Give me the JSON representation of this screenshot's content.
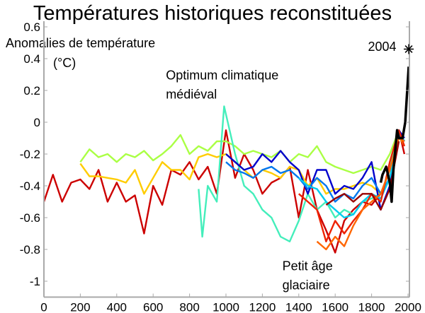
{
  "chart_data": {
    "type": "line",
    "title": "Températures historiques reconstituées",
    "ylabel_lines": [
      "Anomalies de température",
      "(°C)"
    ],
    "xlabel": "",
    "xlim": [
      0,
      2000
    ],
    "ylim": [
      -1.1,
      0.6
    ],
    "xticks": [
      0,
      200,
      400,
      600,
      800,
      1000,
      1200,
      1400,
      1600,
      1800,
      2000
    ],
    "yticks": [
      -1,
      -0.8,
      -0.6,
      -0.4,
      -0.2,
      0,
      0.2,
      0.4,
      0.6
    ],
    "ytick_labels": [
      "-1",
      "-0.8",
      "-0.6",
      "-0.4",
      "-0.2",
      "0",
      "0.2",
      "0.4",
      "0.6"
    ],
    "grid": false,
    "annotations": [
      {
        "lines": [
          "Optimum climatique",
          "médiéval"
        ],
        "x": 670,
        "y": 0.27
      },
      {
        "lines": [
          "Petit âge",
          "glaciaire"
        ],
        "x": 1310,
        "y": -0.93
      },
      {
        "lines": [
          "2004"
        ],
        "x": 1780,
        "y": 0.45
      }
    ],
    "marker_2004": {
      "x": 2004,
      "y": 0.46,
      "symbol": "asterisk"
    },
    "series": [
      {
        "color": "#cc0000",
        "x": [
          0,
          50,
          100,
          150,
          200,
          250,
          300,
          350,
          400,
          450,
          500,
          550,
          600,
          650,
          700,
          750,
          800,
          850,
          900,
          950,
          1000,
          1050,
          1100,
          1150,
          1200,
          1250,
          1300,
          1350,
          1400,
          1450,
          1500,
          1550,
          1600,
          1650,
          1700,
          1750,
          1800,
          1850,
          1900,
          1950,
          1980
        ],
        "y": [
          -0.5,
          -0.33,
          -0.5,
          -0.38,
          -0.36,
          -0.42,
          -0.3,
          -0.5,
          -0.38,
          -0.5,
          -0.46,
          -0.7,
          -0.4,
          -0.52,
          -0.3,
          -0.33,
          -0.25,
          -0.36,
          -0.28,
          -0.45,
          -0.05,
          -0.35,
          -0.2,
          -0.3,
          -0.45,
          -0.38,
          -0.35,
          -0.28,
          -0.6,
          -0.3,
          -0.55,
          -0.68,
          -0.82,
          -0.62,
          -0.55,
          -0.5,
          -0.52,
          -0.45,
          -0.3,
          -0.05,
          -0.2
        ]
      },
      {
        "color": "#aaff44",
        "x": [
          200,
          250,
          300,
          350,
          400,
          450,
          500,
          550,
          600,
          650,
          700,
          750,
          800,
          850,
          900,
          950,
          1000,
          1050,
          1100,
          1150,
          1200,
          1250,
          1300,
          1350,
          1400,
          1450,
          1500,
          1550,
          1600,
          1650,
          1700,
          1750,
          1800,
          1850,
          1900,
          1950,
          1980
        ],
        "y": [
          -0.25,
          -0.17,
          -0.22,
          -0.2,
          -0.25,
          -0.2,
          -0.22,
          -0.18,
          -0.24,
          -0.2,
          -0.15,
          -0.08,
          -0.2,
          -0.15,
          -0.18,
          -0.12,
          -0.12,
          -0.15,
          -0.2,
          -0.18,
          -0.2,
          -0.22,
          -0.18,
          -0.25,
          -0.2,
          -0.22,
          -0.15,
          -0.25,
          -0.28,
          -0.3,
          -0.32,
          -0.3,
          -0.28,
          -0.3,
          -0.2,
          -0.05,
          -0.12
        ]
      },
      {
        "color": "#ffcc00",
        "x": [
          200,
          250,
          300,
          350,
          400,
          450,
          500,
          550,
          600,
          650,
          700,
          750,
          800,
          850,
          900,
          950,
          1000,
          1050,
          1100,
          1150,
          1200,
          1250,
          1300,
          1350,
          1400,
          1450,
          1500,
          1550,
          1600,
          1650,
          1700,
          1750,
          1800,
          1850,
          1900,
          1950,
          1980
        ],
        "y": [
          -0.26,
          -0.34,
          -0.34,
          -0.35,
          -0.36,
          -0.38,
          -0.3,
          -0.45,
          -0.35,
          -0.25,
          -0.3,
          -0.3,
          -0.36,
          -0.22,
          -0.2,
          -0.22,
          -0.2,
          -0.25,
          -0.3,
          -0.35,
          -0.3,
          -0.32,
          -0.35,
          -0.28,
          -0.3,
          -0.4,
          -0.35,
          -0.45,
          -0.42,
          -0.42,
          -0.4,
          -0.38,
          -0.4,
          -0.45,
          -0.3,
          -0.08,
          -0.15
        ]
      },
      {
        "color": "#44eebb",
        "x": [
          850,
          870,
          900,
          950,
          990,
          1050,
          1100,
          1150,
          1200,
          1250,
          1300,
          1350,
          1400,
          1450,
          1500,
          1550,
          1600,
          1650,
          1700,
          1750,
          1800,
          1850,
          1900,
          1950,
          1980
        ],
        "y": [
          -0.42,
          -0.72,
          -0.4,
          -0.5,
          0.1,
          -0.2,
          -0.4,
          -0.45,
          -0.55,
          -0.6,
          -0.72,
          -0.75,
          -0.62,
          -0.45,
          -0.55,
          -0.5,
          -0.6,
          -0.55,
          -0.58,
          -0.5,
          -0.48,
          -0.45,
          -0.3,
          -0.05,
          -0.12
        ]
      },
      {
        "color": "#0000cc",
        "x": [
          1000,
          1050,
          1100,
          1150,
          1200,
          1250,
          1300,
          1350,
          1400,
          1450,
          1500,
          1550,
          1600,
          1650,
          1700,
          1750,
          1800,
          1850,
          1900,
          1950,
          1980
        ],
        "y": [
          -0.2,
          -0.25,
          -0.3,
          -0.28,
          -0.2,
          -0.25,
          -0.18,
          -0.25,
          -0.3,
          -0.45,
          -0.3,
          -0.3,
          -0.45,
          -0.4,
          -0.42,
          -0.35,
          -0.25,
          -0.55,
          -0.4,
          -0.05,
          -0.1
        ]
      },
      {
        "color": "#0077ee",
        "x": [
          1000,
          1050,
          1100,
          1150,
          1200,
          1250,
          1300,
          1350,
          1400,
          1450,
          1500,
          1550,
          1600,
          1650,
          1700,
          1750,
          1800,
          1850,
          1900,
          1950,
          1980
        ],
        "y": [
          -0.25,
          -0.3,
          -0.32,
          -0.35,
          -0.3,
          -0.28,
          -0.32,
          -0.3,
          -0.35,
          -0.42,
          -0.35,
          -0.4,
          -0.5,
          -0.45,
          -0.48,
          -0.4,
          -0.35,
          -0.45,
          -0.35,
          -0.08,
          -0.12
        ]
      },
      {
        "color": "#00ccee",
        "x": [
          1400,
          1450,
          1500,
          1550,
          1600,
          1650,
          1700,
          1750,
          1800,
          1850,
          1900,
          1950,
          1980
        ],
        "y": [
          -0.35,
          -0.4,
          -0.42,
          -0.5,
          -0.55,
          -0.6,
          -0.58,
          -0.5,
          -0.45,
          -0.48,
          -0.35,
          -0.1,
          -0.12
        ]
      },
      {
        "color": "#ee2200",
        "x": [
          1400,
          1450,
          1500,
          1550,
          1600,
          1650,
          1700,
          1750,
          1800,
          1850,
          1900,
          1950,
          1980
        ],
        "y": [
          -0.45,
          -0.5,
          -0.55,
          -0.75,
          -0.62,
          -0.7,
          -0.62,
          -0.55,
          -0.45,
          -0.5,
          -0.25,
          -0.05,
          -0.15
        ]
      },
      {
        "color": "#ff6600",
        "x": [
          1500,
          1550,
          1600,
          1650,
          1700,
          1750,
          1800,
          1850,
          1900,
          1950,
          1980
        ],
        "y": [
          -0.75,
          -0.8,
          -0.72,
          -0.78,
          -0.65,
          -0.55,
          -0.5,
          -0.45,
          -0.3,
          -0.1,
          -0.12
        ]
      },
      {
        "color": "#990000",
        "x": [
          1550,
          1600,
          1650,
          1700,
          1750,
          1800,
          1850,
          1900,
          1950
        ],
        "y": [
          -0.52,
          -0.48,
          -0.45,
          -0.5,
          -0.45,
          -0.45,
          -0.55,
          -0.42,
          -0.12
        ]
      },
      {
        "color": "#000000",
        "x": [
          1850,
          1860,
          1880,
          1900,
          1910,
          1920,
          1940,
          1950,
          1970,
          1985,
          2004
        ],
        "y": [
          -0.38,
          -0.33,
          -0.28,
          -0.38,
          -0.5,
          -0.3,
          -0.05,
          -0.1,
          -0.1,
          0.0,
          0.35
        ]
      }
    ]
  }
}
